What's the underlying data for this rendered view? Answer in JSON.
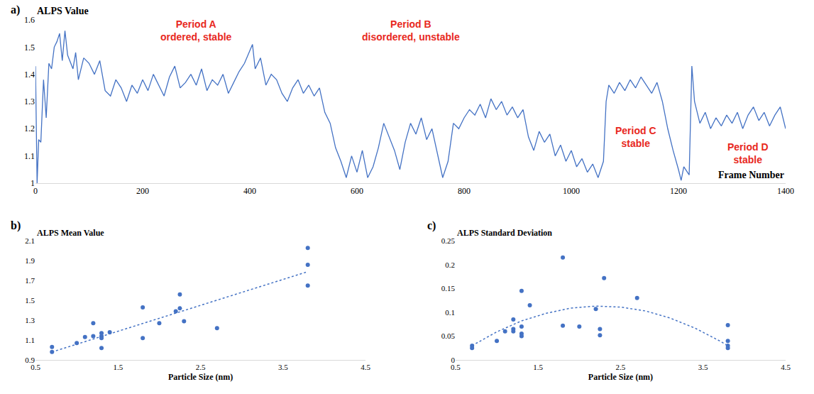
{
  "chart_data": [
    {
      "type": "line",
      "label": "a)",
      "ylabel": "ALPS Value",
      "xlabel": "Frame Number",
      "xlim": [
        0,
        1400
      ],
      "xticks": [
        0,
        200,
        400,
        600,
        800,
        1000,
        1200,
        1400
      ],
      "ylim": [
        1,
        1.6
      ],
      "yticks": [
        1,
        1.1,
        1.2,
        1.3,
        1.4,
        1.5,
        1.6
      ],
      "grid": false,
      "series": [
        {
          "type": "line",
          "color": "#4472c4",
          "line_style": "solid",
          "x": [
            0,
            3,
            6,
            10,
            15,
            20,
            25,
            30,
            35,
            40,
            45,
            50,
            55,
            60,
            70,
            75,
            80,
            90,
            100,
            110,
            120,
            130,
            140,
            150,
            160,
            170,
            180,
            190,
            200,
            210,
            220,
            230,
            240,
            250,
            260,
            270,
            280,
            290,
            300,
            310,
            320,
            330,
            340,
            350,
            360,
            370,
            380,
            390,
            400,
            405,
            410,
            420,
            430,
            440,
            450,
            460,
            470,
            480,
            490,
            500,
            510,
            520,
            530,
            540,
            550,
            560,
            570,
            580,
            590,
            600,
            610,
            620,
            630,
            640,
            650,
            660,
            670,
            680,
            690,
            700,
            710,
            720,
            730,
            740,
            750,
            760,
            770,
            780,
            790,
            800,
            810,
            820,
            830,
            840,
            850,
            860,
            870,
            880,
            890,
            900,
            910,
            920,
            930,
            940,
            950,
            960,
            970,
            980,
            990,
            1000,
            1010,
            1020,
            1030,
            1040,
            1050,
            1060,
            1065,
            1070,
            1080,
            1090,
            1100,
            1110,
            1120,
            1130,
            1140,
            1150,
            1160,
            1170,
            1180,
            1190,
            1200,
            1205,
            1210,
            1220,
            1225,
            1230,
            1240,
            1250,
            1260,
            1270,
            1280,
            1290,
            1300,
            1310,
            1320,
            1330,
            1340,
            1350,
            1360,
            1370,
            1380,
            1390,
            1400
          ],
          "values": [
            1.43,
            1.0,
            1.16,
            1.15,
            1.38,
            1.24,
            1.44,
            1.42,
            1.5,
            1.52,
            1.55,
            1.45,
            1.56,
            1.47,
            1.42,
            1.48,
            1.38,
            1.46,
            1.44,
            1.4,
            1.45,
            1.34,
            1.32,
            1.38,
            1.35,
            1.3,
            1.36,
            1.33,
            1.38,
            1.34,
            1.4,
            1.36,
            1.32,
            1.39,
            1.43,
            1.35,
            1.37,
            1.4,
            1.36,
            1.42,
            1.34,
            1.38,
            1.36,
            1.4,
            1.33,
            1.37,
            1.41,
            1.44,
            1.49,
            1.51,
            1.42,
            1.46,
            1.36,
            1.4,
            1.38,
            1.33,
            1.3,
            1.35,
            1.38,
            1.33,
            1.36,
            1.32,
            1.35,
            1.26,
            1.22,
            1.13,
            1.08,
            1.02,
            1.1,
            1.04,
            1.12,
            1.02,
            1.06,
            1.13,
            1.22,
            1.17,
            1.12,
            1.05,
            1.15,
            1.22,
            1.18,
            1.24,
            1.16,
            1.2,
            1.11,
            1.02,
            1.08,
            1.22,
            1.2,
            1.24,
            1.27,
            1.25,
            1.29,
            1.24,
            1.31,
            1.27,
            1.3,
            1.25,
            1.28,
            1.24,
            1.27,
            1.17,
            1.12,
            1.19,
            1.15,
            1.18,
            1.1,
            1.14,
            1.08,
            1.12,
            1.06,
            1.09,
            1.04,
            1.07,
            1.02,
            1.08,
            1.3,
            1.36,
            1.33,
            1.37,
            1.34,
            1.38,
            1.35,
            1.39,
            1.36,
            1.33,
            1.37,
            1.3,
            1.2,
            1.12,
            1.05,
            1.01,
            1.06,
            1.03,
            1.43,
            1.3,
            1.22,
            1.26,
            1.2,
            1.24,
            1.21,
            1.25,
            1.22,
            1.26,
            1.2,
            1.25,
            1.28,
            1.23,
            1.26,
            1.21,
            1.25,
            1.28,
            1.2
          ]
        }
      ],
      "annotations": [
        {
          "text": "Period A\nordered, stable",
          "x": 300,
          "y": 1.56,
          "color": "#e8281e"
        },
        {
          "text": "Period B\ndisordered, unstable",
          "x": 700,
          "y": 1.56,
          "color": "#e8281e"
        },
        {
          "text": "Period C\nstable",
          "x": 1120,
          "y": 1.17,
          "color": "#e8281e"
        },
        {
          "text": "Period D\nstable",
          "x": 1330,
          "y": 1.11,
          "color": "#e8281e"
        }
      ]
    },
    {
      "type": "scatter",
      "label": "b)",
      "ylabel": "ALPS Mean Value",
      "xlabel": "Particle Size (nm)",
      "xlim": [
        0.5,
        4.5
      ],
      "xticks": [
        0.5,
        1.5,
        2.5,
        3.5,
        4.5
      ],
      "ylim": [
        0.9,
        2.1
      ],
      "yticks": [
        0.9,
        1.1,
        1.3,
        1.5,
        1.7,
        1.9,
        2.1
      ],
      "grid": false,
      "series": [
        {
          "type": "scatter",
          "marker": "circle",
          "color": "#4472c4",
          "x": [
            0.7,
            0.7,
            1.0,
            1.1,
            1.2,
            1.2,
            1.3,
            1.3,
            1.3,
            1.3,
            1.4,
            1.8,
            1.8,
            2.0,
            2.2,
            2.25,
            2.25,
            2.3,
            2.7,
            3.8,
            3.8,
            3.8
          ],
          "values": [
            1.03,
            0.98,
            1.07,
            1.13,
            1.27,
            1.14,
            1.17,
            1.14,
            1.02,
            1.12,
            1.18,
            1.43,
            1.12,
            1.27,
            1.39,
            1.42,
            1.56,
            1.29,
            1.22,
            2.03,
            1.86,
            1.65
          ]
        },
        {
          "type": "line",
          "line_style": "dotted",
          "color": "#4472c4",
          "x": [
            0.7,
            3.8
          ],
          "values": [
            0.98,
            1.79
          ]
        }
      ]
    },
    {
      "type": "scatter",
      "label": "c)",
      "ylabel": "ALPS Standard Deviation",
      "xlabel": "Particle Size (nm)",
      "xlim": [
        0.5,
        4.5
      ],
      "xticks": [
        0.5,
        1.5,
        2.5,
        3.5,
        4.5
      ],
      "ylim": [
        0,
        0.25
      ],
      "yticks": [
        0,
        0.05,
        0.1,
        0.15,
        0.2,
        0.25
      ],
      "grid": false,
      "series": [
        {
          "type": "scatter",
          "marker": "circle",
          "color": "#4472c4",
          "x": [
            0.7,
            0.7,
            1.0,
            1.1,
            1.2,
            1.2,
            1.2,
            1.3,
            1.3,
            1.3,
            1.3,
            1.4,
            1.8,
            1.8,
            2.0,
            2.2,
            2.25,
            2.25,
            2.3,
            2.7,
            3.8,
            3.8,
            3.8,
            3.8
          ],
          "values": [
            0.03,
            0.025,
            0.04,
            0.06,
            0.085,
            0.06,
            0.065,
            0.145,
            0.07,
            0.055,
            0.05,
            0.115,
            0.215,
            0.072,
            0.07,
            0.107,
            0.065,
            0.052,
            0.172,
            0.13,
            0.073,
            0.04,
            0.03,
            0.025
          ]
        },
        {
          "type": "line",
          "line_style": "dotted",
          "color": "#4472c4",
          "x": [
            0.7,
            1.0,
            1.3,
            1.6,
            1.9,
            2.2,
            2.5,
            2.8,
            3.1,
            3.4,
            3.7,
            3.8
          ],
          "values": [
            0.03,
            0.059,
            0.082,
            0.098,
            0.109,
            0.113,
            0.111,
            0.103,
            0.088,
            0.067,
            0.04,
            0.03
          ]
        }
      ]
    }
  ]
}
